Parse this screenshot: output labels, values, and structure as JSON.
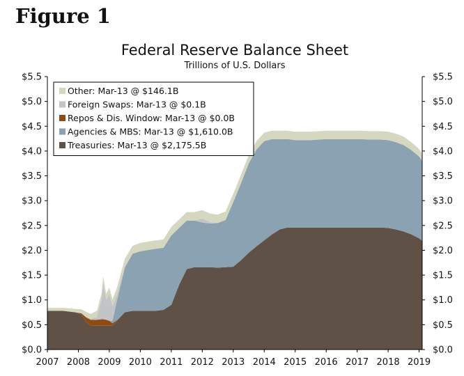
{
  "figure_label": "Figure 1",
  "chart_data": {
    "type": "area",
    "title": "Federal Reserve Balance Sheet",
    "subtitle": "Trillions of U.S. Dollars",
    "xlabel": "",
    "ylabel": "",
    "xlim": [
      2007.0,
      2019.1
    ],
    "ylim": [
      0,
      5.5
    ],
    "x_ticks": [
      2007,
      2008,
      2009,
      2010,
      2011,
      2012,
      2013,
      2014,
      2015,
      2016,
      2017,
      2018,
      2019
    ],
    "x_tick_labels": [
      "2007",
      "2008",
      "2009",
      "2010",
      "2011",
      "2012",
      "2013",
      "2014",
      "2015",
      "2016",
      "2017",
      "2018",
      "2019"
    ],
    "y_ticks": [
      0,
      0.5,
      1.0,
      1.5,
      2.0,
      2.5,
      3.0,
      3.5,
      4.0,
      4.5,
      5.0,
      5.5
    ],
    "y_tick_labels_left": [
      "$0.0",
      "$0.5",
      "$1.0",
      "$1.5",
      "$2.0",
      "$2.5",
      "$3.0",
      "$3.5",
      "$4.0",
      "$4.5",
      "$5.0",
      "$5.5"
    ],
    "y_tick_labels_right": [
      "$0.0",
      "$0.5",
      "$1.0",
      "$1.5",
      "$2.0",
      "$2.5",
      "$3.0",
      "$3.5",
      "$4.0",
      "$4.5",
      "$5.0",
      "$5.5"
    ],
    "stacking_order": [
      "Treasuries",
      "Repos & Dis. Window",
      "Agencies & MBS",
      "Foreign Swaps",
      "Other"
    ],
    "legend_position": "top-left",
    "legend": [
      {
        "label": "Other: Mar-13 @ $146.1B",
        "color": "#d6d7bf"
      },
      {
        "label": "Foreign Swaps: Mar-13 @ $0.1B",
        "color": "#c3c4c5"
      },
      {
        "label": "Repos & Dis. Window: Mar-13 @ $0.0B",
        "color": "#8e4b12"
      },
      {
        "label": "Agencies & MBS: Mar-13 @ $1,610.0B",
        "color": "#8aa2b2"
      },
      {
        "label": "Treasuries: Mar-13 @ $2,175.5B",
        "color": "#5f5146"
      }
    ],
    "x": [
      2007.0,
      2007.5,
      2007.9,
      2008.1,
      2008.25,
      2008.4,
      2008.6,
      2008.75,
      2008.8,
      2008.9,
      2009.0,
      2009.1,
      2009.25,
      2009.5,
      2009.75,
      2010.0,
      2010.5,
      2010.75,
      2011.0,
      2011.25,
      2011.5,
      2011.75,
      2012.0,
      2012.25,
      2012.5,
      2012.75,
      2013.0,
      2013.25,
      2013.5,
      2013.75,
      2014.0,
      2014.25,
      2014.5,
      2014.75,
      2015.0,
      2015.5,
      2016.0,
      2016.5,
      2017.0,
      2017.5,
      2017.75,
      2018.0,
      2018.25,
      2018.5,
      2018.75,
      2019.0,
      2019.1
    ],
    "series": [
      {
        "name": "Treasuries",
        "color": "#5f5146",
        "values": [
          0.78,
          0.78,
          0.75,
          0.7,
          0.55,
          0.48,
          0.48,
          0.48,
          0.48,
          0.48,
          0.48,
          0.48,
          0.58,
          0.75,
          0.78,
          0.78,
          0.78,
          0.8,
          0.9,
          1.3,
          1.62,
          1.66,
          1.66,
          1.66,
          1.65,
          1.66,
          1.67,
          1.8,
          1.95,
          2.08,
          2.2,
          2.32,
          2.42,
          2.46,
          2.46,
          2.46,
          2.46,
          2.46,
          2.46,
          2.46,
          2.46,
          2.45,
          2.42,
          2.38,
          2.32,
          2.24,
          2.19
        ]
      },
      {
        "name": "Repos & Dis. Window",
        "color": "#8e4b12",
        "values": [
          0.0,
          0.0,
          0.0,
          0.03,
          0.1,
          0.12,
          0.12,
          0.13,
          0.13,
          0.12,
          0.1,
          0.05,
          0.01,
          0.0,
          0.0,
          0.0,
          0.0,
          0.0,
          0.0,
          0.0,
          0.0,
          0.0,
          0.0,
          0.0,
          0.0,
          0.0,
          0.0,
          0.0,
          0.0,
          0.0,
          0.0,
          0.0,
          0.0,
          0.0,
          0.0,
          0.0,
          0.0,
          0.0,
          0.0,
          0.0,
          0.0,
          0.0,
          0.0,
          0.0,
          0.0,
          0.0,
          0.0
        ]
      },
      {
        "name": "Agencies & MBS",
        "color": "#8aa2b2",
        "values": [
          0.0,
          0.0,
          0.0,
          0.0,
          0.0,
          0.0,
          0.0,
          0.0,
          0.0,
          0.0,
          0.0,
          0.05,
          0.4,
          0.9,
          1.15,
          1.2,
          1.25,
          1.25,
          1.4,
          1.15,
          0.98,
          0.94,
          0.9,
          0.88,
          0.9,
          0.95,
          1.3,
          1.55,
          1.8,
          1.95,
          2.0,
          1.92,
          1.82,
          1.78,
          1.76,
          1.76,
          1.78,
          1.78,
          1.78,
          1.77,
          1.77,
          1.77,
          1.76,
          1.74,
          1.7,
          1.65,
          1.61
        ]
      },
      {
        "name": "Foreign Swaps",
        "color": "#c3c4c5",
        "values": [
          0.0,
          0.0,
          0.0,
          0.0,
          0.01,
          0.02,
          0.06,
          0.4,
          0.75,
          0.4,
          0.55,
          0.3,
          0.12,
          0.03,
          0.0,
          0.0,
          0.0,
          0.0,
          0.0,
          0.0,
          0.0,
          0.0,
          0.08,
          0.03,
          0.0,
          0.0,
          0.0,
          0.0,
          0.0,
          0.0,
          0.0,
          0.0,
          0.0,
          0.0,
          0.0,
          0.0,
          0.0,
          0.0,
          0.0,
          0.0,
          0.0,
          0.0,
          0.0,
          0.0,
          0.0,
          0.0,
          0.0
        ]
      },
      {
        "name": "Other",
        "color": "#d6d7bf",
        "values": [
          0.06,
          0.06,
          0.07,
          0.08,
          0.1,
          0.1,
          0.12,
          0.12,
          0.12,
          0.12,
          0.12,
          0.13,
          0.14,
          0.15,
          0.16,
          0.17,
          0.17,
          0.17,
          0.17,
          0.17,
          0.17,
          0.17,
          0.17,
          0.17,
          0.17,
          0.17,
          0.17,
          0.17,
          0.17,
          0.17,
          0.17,
          0.17,
          0.17,
          0.17,
          0.17,
          0.17,
          0.17,
          0.17,
          0.17,
          0.17,
          0.17,
          0.17,
          0.17,
          0.17,
          0.16,
          0.15,
          0.15
        ]
      }
    ]
  }
}
